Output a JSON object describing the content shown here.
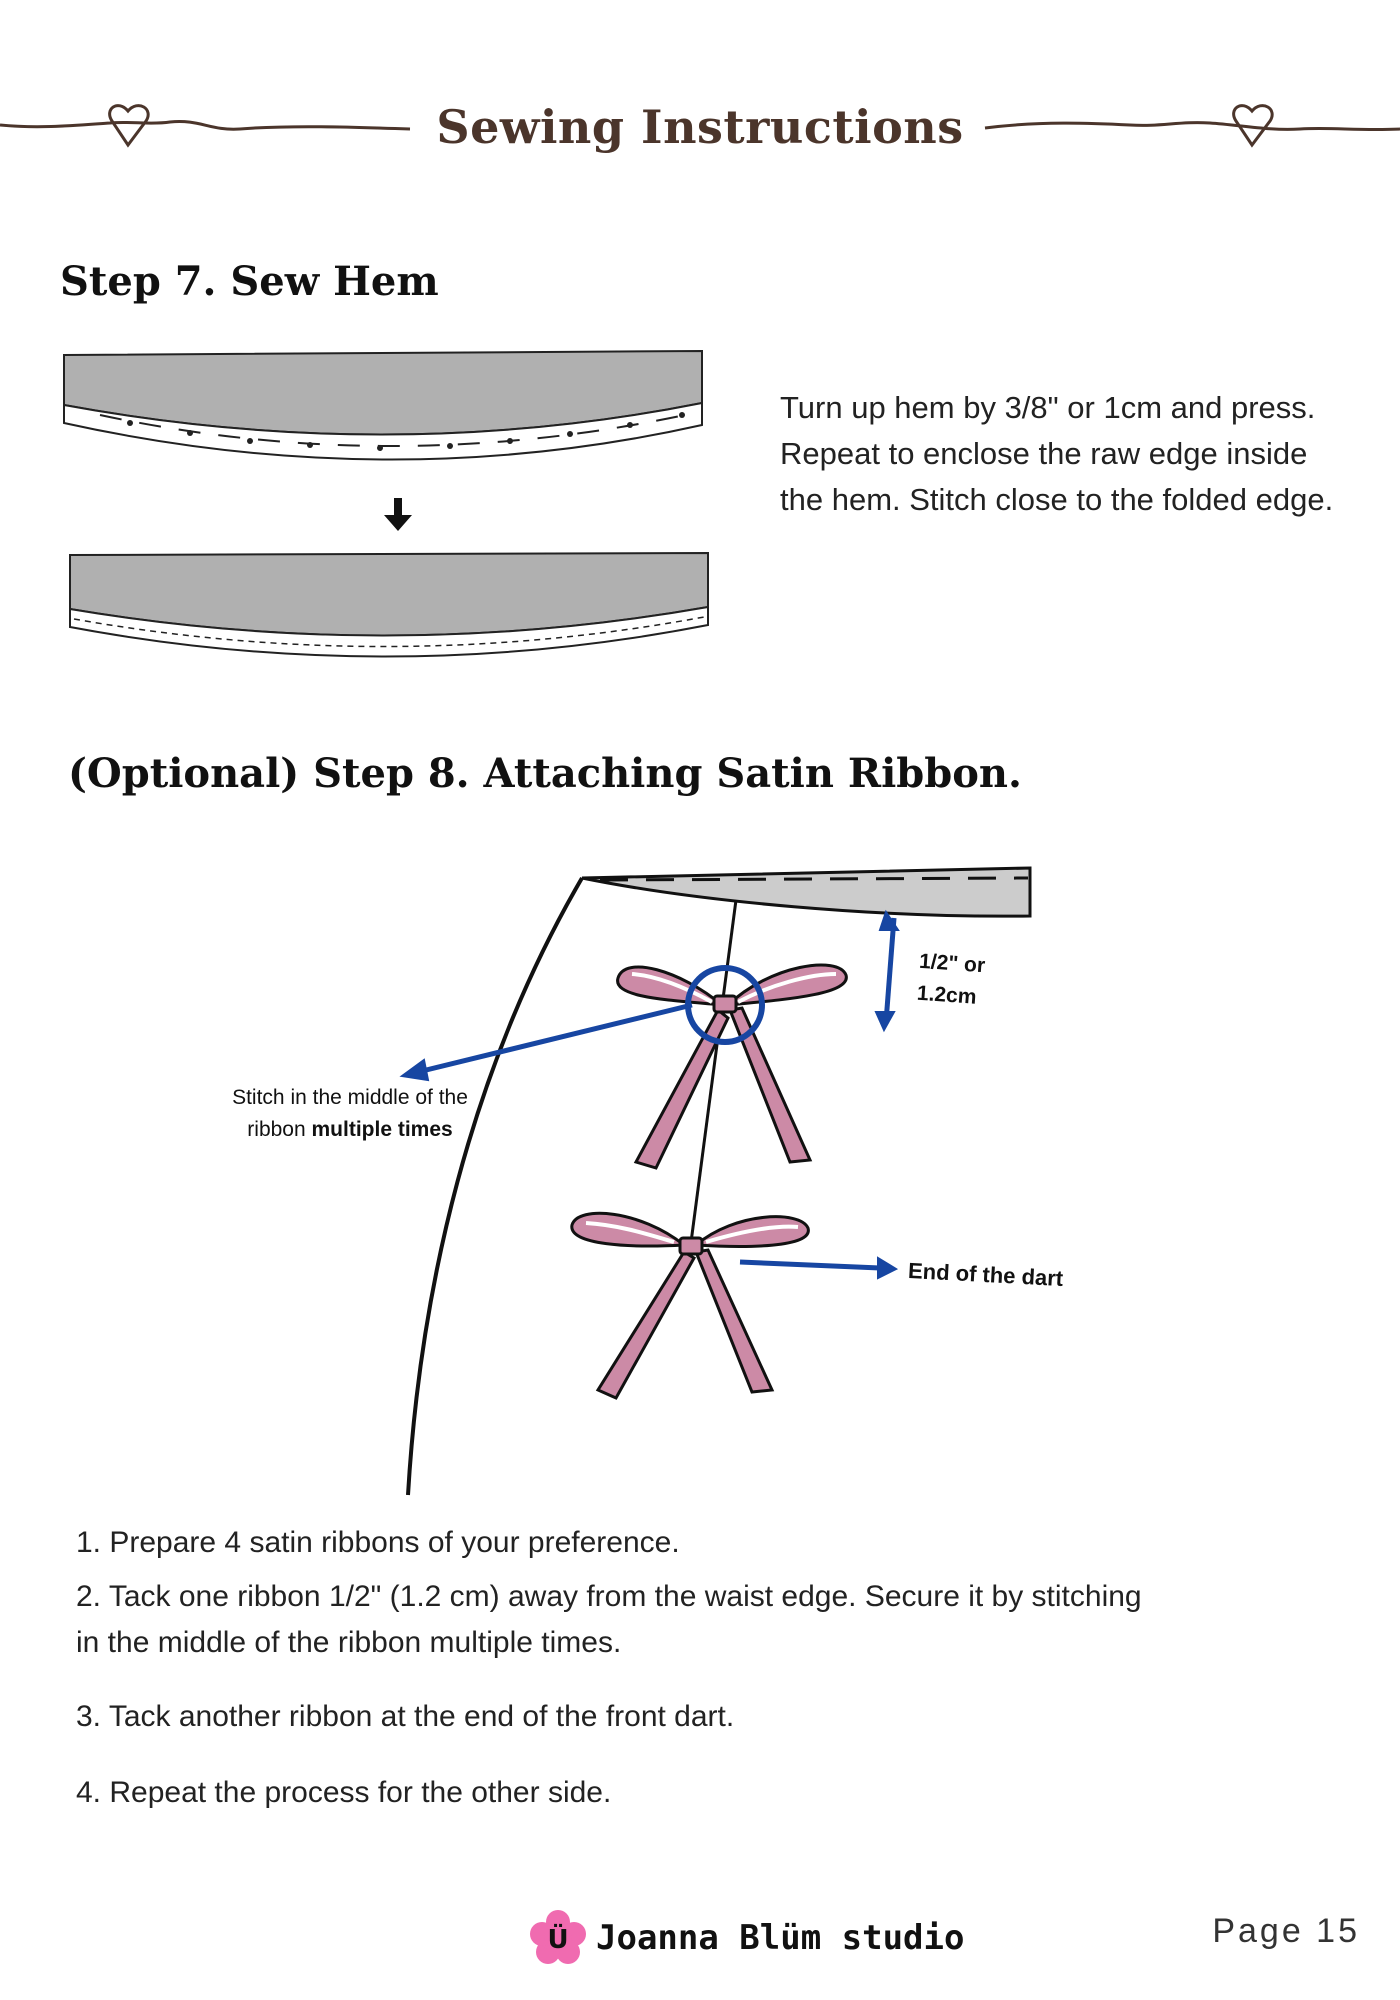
{
  "header": {
    "title": "Sewing Instructions",
    "line_color": "#4b352b"
  },
  "step7": {
    "title": "Step 7. Sew Hem",
    "text": "Turn up hem by 3/8\" or 1cm and press. Repeat to enclose the raw edge inside the hem. Stitch close to the folded edge."
  },
  "step8": {
    "title": "(Optional) Step 8. Attaching Satin Ribbon.",
    "callouts": {
      "stitch_prefix": "Stitch in the middle of the ribbon ",
      "stitch_bold": "multiple times",
      "half_inch_line1": "1/2\" or",
      "half_inch_line2": "1.2cm",
      "end_of_dart": "End of the dart"
    },
    "ribbon_color": "#cc8aa6",
    "arrow_color": "#1746a2",
    "instructions": [
      "1.  Prepare 4 satin ribbons of your preference.",
      "2.  Tack one ribbon 1/2\" (1.2 cm) away from the waist edge. Secure it by stitching in the middle of the ribbon multiple times.",
      "3. Tack another ribbon at the end of the front dart.",
      "4. Repeat the process for the other side."
    ]
  },
  "footer": {
    "logo_letter": "Ü",
    "brand": "Joanna Blüm studio",
    "page": "Page 15",
    "logo_color": "#f06bb0"
  }
}
